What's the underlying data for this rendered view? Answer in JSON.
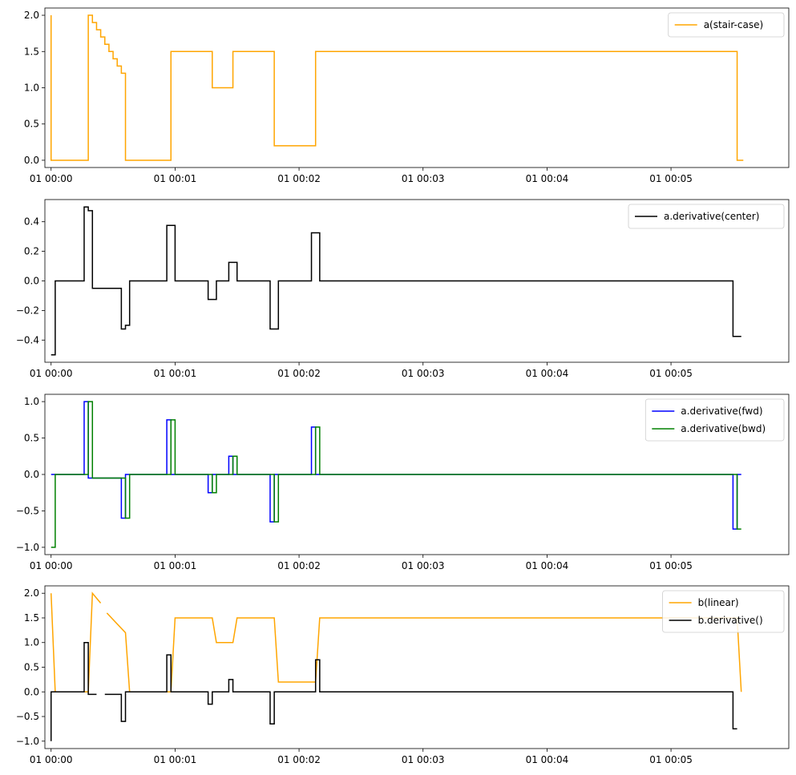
{
  "chart_data": [
    {
      "type": "line",
      "step": true,
      "x_unit": "seconds",
      "xlim": [
        -3,
        357
      ],
      "ylim": [
        -0.1,
        2.1
      ],
      "x_ticks": [
        {
          "label": "01 00:00",
          "value": 0
        },
        {
          "label": "01 00:01",
          "value": 60
        },
        {
          "label": "01 00:02",
          "value": 120
        },
        {
          "label": "01 00:03",
          "value": 180
        },
        {
          "label": "01 00:04",
          "value": 240
        },
        {
          "label": "01 00:05",
          "value": 300
        }
      ],
      "y_ticks": [
        {
          "label": "0.0",
          "value": 0
        },
        {
          "label": "0.5",
          "value": 0.5
        },
        {
          "label": "1.0",
          "value": 1.0
        },
        {
          "label": "1.5",
          "value": 1.5
        },
        {
          "label": "2.0",
          "value": 2.0
        }
      ],
      "legend_position": "top-right",
      "series": [
        {
          "name": "a(stair-case)",
          "color": "#ffa500",
          "segments": [
            [
              [
                0,
                2
              ],
              [
                0,
                0
              ],
              [
                18,
                0
              ],
              [
                18,
                2
              ],
              [
                20,
                2
              ],
              [
                20,
                1.9
              ],
              [
                22,
                1.9
              ],
              [
                22,
                1.8
              ],
              [
                24,
                1.8
              ],
              [
                24,
                1.7
              ],
              [
                26,
                1.7
              ],
              [
                26,
                1.6
              ],
              [
                28,
                1.6
              ],
              [
                28,
                1.5
              ],
              [
                30,
                1.5
              ],
              [
                30,
                1.4
              ],
              [
                32,
                1.4
              ],
              [
                32,
                1.3
              ],
              [
                34,
                1.3
              ],
              [
                34,
                1.2
              ],
              [
                36,
                1.2
              ],
              [
                36,
                0
              ],
              [
                58,
                0
              ],
              [
                58,
                1.5
              ],
              [
                78,
                1.5
              ],
              [
                78,
                1
              ],
              [
                88,
                1
              ],
              [
                88,
                1.5
              ],
              [
                108,
                1.5
              ],
              [
                108,
                0.2
              ],
              [
                128,
                0.2
              ],
              [
                128,
                1.5
              ],
              [
                332,
                1.5
              ],
              [
                332,
                0
              ],
              [
                335,
                0
              ]
            ]
          ]
        }
      ]
    },
    {
      "type": "line",
      "step": true,
      "x_unit": "seconds",
      "xlim": [
        -3,
        357
      ],
      "ylim": [
        -0.55,
        0.55
      ],
      "x_ticks": [
        {
          "label": "01 00:00",
          "value": 0
        },
        {
          "label": "01 00:01",
          "value": 60
        },
        {
          "label": "01 00:02",
          "value": 120
        },
        {
          "label": "01 00:03",
          "value": 180
        },
        {
          "label": "01 00:04",
          "value": 240
        },
        {
          "label": "01 00:05",
          "value": 300
        }
      ],
      "y_ticks": [
        {
          "label": "−0.4",
          "value": -0.4
        },
        {
          "label": "−0.2",
          "value": -0.2
        },
        {
          "label": "0.0",
          "value": 0
        },
        {
          "label": "0.2",
          "value": 0.2
        },
        {
          "label": "0.4",
          "value": 0.4
        }
      ],
      "legend_position": "top-right",
      "series": [
        {
          "name": "a.derivative(center)",
          "color": "#000000",
          "segments": [
            [
              [
                0,
                -0.5
              ],
              [
                2,
                -0.5
              ],
              [
                2,
                0
              ],
              [
                16,
                0
              ],
              [
                16,
                0.5
              ],
              [
                18,
                0.5
              ],
              [
                18,
                0.475
              ],
              [
                20,
                0.475
              ],
              [
                20,
                -0.05
              ],
              [
                34,
                -0.05
              ],
              [
                34,
                -0.325
              ],
              [
                36,
                -0.325
              ],
              [
                36,
                -0.3
              ],
              [
                38,
                -0.3
              ],
              [
                38,
                0
              ],
              [
                56,
                0
              ],
              [
                56,
                0.375
              ],
              [
                60,
                0.375
              ],
              [
                60,
                0
              ],
              [
                76,
                0
              ],
              [
                76,
                -0.125
              ],
              [
                80,
                -0.125
              ],
              [
                80,
                0
              ],
              [
                86,
                0
              ],
              [
                86,
                0.125
              ],
              [
                90,
                0.125
              ],
              [
                90,
                0
              ],
              [
                106,
                0
              ],
              [
                106,
                -0.325
              ],
              [
                110,
                -0.325
              ],
              [
                110,
                0
              ],
              [
                126,
                0
              ],
              [
                126,
                0.325
              ],
              [
                130,
                0.325
              ],
              [
                130,
                0
              ],
              [
                330,
                0
              ],
              [
                330,
                -0.375
              ],
              [
                334,
                -0.375
              ]
            ]
          ]
        }
      ]
    },
    {
      "type": "line",
      "step": true,
      "x_unit": "seconds",
      "xlim": [
        -3,
        357
      ],
      "ylim": [
        -1.1,
        1.1
      ],
      "x_ticks": [
        {
          "label": "01 00:00",
          "value": 0
        },
        {
          "label": "01 00:01",
          "value": 60
        },
        {
          "label": "01 00:02",
          "value": 120
        },
        {
          "label": "01 00:03",
          "value": 180
        },
        {
          "label": "01 00:04",
          "value": 240
        },
        {
          "label": "01 00:05",
          "value": 300
        }
      ],
      "y_ticks": [
        {
          "label": "−1.0",
          "value": -1.0
        },
        {
          "label": "−0.5",
          "value": -0.5
        },
        {
          "label": "0.0",
          "value": 0
        },
        {
          "label": "0.5",
          "value": 0.5
        },
        {
          "label": "1.0",
          "value": 1.0
        }
      ],
      "legend_position": "top-right",
      "series": [
        {
          "name": "a.derivative(fwd)",
          "color": "#0000ff",
          "segments": [
            [
              [
                0,
                0
              ],
              [
                16,
                0
              ],
              [
                16,
                1
              ],
              [
                18,
                1
              ],
              [
                18,
                -0.05
              ],
              [
                34,
                -0.05
              ],
              [
                34,
                -0.6
              ],
              [
                36,
                -0.6
              ],
              [
                36,
                0
              ],
              [
                56,
                0
              ],
              [
                56,
                0.75
              ],
              [
                58,
                0.75
              ],
              [
                58,
                0
              ],
              [
                76,
                0
              ],
              [
                76,
                -0.25
              ],
              [
                78,
                -0.25
              ],
              [
                78,
                0
              ],
              [
                86,
                0
              ],
              [
                86,
                0.25
              ],
              [
                88,
                0.25
              ],
              [
                88,
                0
              ],
              [
                106,
                0
              ],
              [
                106,
                -0.65
              ],
              [
                108,
                -0.65
              ],
              [
                108,
                0
              ],
              [
                126,
                0
              ],
              [
                126,
                0.65
              ],
              [
                128,
                0.65
              ],
              [
                128,
                0
              ],
              [
                330,
                0
              ],
              [
                330,
                -0.75
              ],
              [
                332,
                -0.75
              ],
              [
                332,
                0
              ],
              [
                334,
                0
              ]
            ]
          ]
        },
        {
          "name": "a.derivative(bwd)",
          "color": "#008000",
          "segments": [
            [
              [
                0,
                -1
              ],
              [
                2,
                -1
              ],
              [
                2,
                0
              ],
              [
                18,
                0
              ],
              [
                18,
                1
              ],
              [
                20,
                1
              ],
              [
                20,
                -0.05
              ],
              [
                34,
                -0.05
              ],
              [
                34,
                -0.05
              ],
              [
                36,
                -0.05
              ],
              [
                36,
                -0.6
              ],
              [
                38,
                -0.6
              ],
              [
                38,
                0
              ],
              [
                58,
                0
              ],
              [
                58,
                0.75
              ],
              [
                60,
                0.75
              ],
              [
                60,
                0
              ],
              [
                78,
                0
              ],
              [
                78,
                -0.25
              ],
              [
                80,
                -0.25
              ],
              [
                80,
                0
              ],
              [
                88,
                0
              ],
              [
                88,
                0.25
              ],
              [
                90,
                0.25
              ],
              [
                90,
                0
              ],
              [
                108,
                0
              ],
              [
                108,
                -0.65
              ],
              [
                110,
                -0.65
              ],
              [
                110,
                0
              ],
              [
                128,
                0
              ],
              [
                128,
                0.65
              ],
              [
                130,
                0.65
              ],
              [
                130,
                0
              ],
              [
                332,
                0
              ],
              [
                332,
                -0.75
              ],
              [
                334,
                -0.75
              ]
            ]
          ]
        }
      ]
    },
    {
      "type": "line",
      "step": false,
      "x_unit": "seconds",
      "xlim": [
        -3,
        357
      ],
      "ylim": [
        -1.15,
        2.15
      ],
      "x_ticks": [
        {
          "label": "01 00:00",
          "value": 0
        },
        {
          "label": "01 00:01",
          "value": 60
        },
        {
          "label": "01 00:02",
          "value": 120
        },
        {
          "label": "01 00:03",
          "value": 180
        },
        {
          "label": "01 00:04",
          "value": 240
        },
        {
          "label": "01 00:05",
          "value": 300
        }
      ],
      "y_ticks": [
        {
          "label": "−1.0",
          "value": -1.0
        },
        {
          "label": "−0.5",
          "value": -0.5
        },
        {
          "label": "0.0",
          "value": 0
        },
        {
          "label": "0.5",
          "value": 0.5
        },
        {
          "label": "1.0",
          "value": 1.0
        },
        {
          "label": "1.5",
          "value": 1.5
        },
        {
          "label": "2.0",
          "value": 2.0
        }
      ],
      "legend_position": "top-right",
      "series": [
        {
          "name": "b(linear)",
          "color": "#ffa500",
          "segments": [
            [
              [
                0,
                2
              ],
              [
                2,
                0
              ],
              [
                18,
                0
              ],
              [
                20,
                2
              ],
              [
                24,
                1.8
              ]
            ],
            [
              [
                27,
                1.6
              ],
              [
                36,
                1.2
              ],
              [
                38,
                0
              ],
              [
                58,
                0
              ],
              [
                60,
                1.5
              ],
              [
                78,
                1.5
              ],
              [
                80,
                1
              ],
              [
                88,
                1
              ],
              [
                90,
                1.5
              ],
              [
                108,
                1.5
              ],
              [
                110,
                0.2
              ],
              [
                128,
                0.2
              ],
              [
                130,
                1.5
              ],
              [
                332,
                1.5
              ],
              [
                334,
                0
              ]
            ]
          ]
        },
        {
          "name": "b.derivative()",
          "color": "#000000",
          "segments": [
            [
              [
                0,
                -1
              ],
              [
                0,
                0
              ],
              [
                16,
                0
              ],
              [
                16,
                1
              ],
              [
                18,
                1
              ],
              [
                18,
                -0.05
              ],
              [
                22,
                -0.05
              ]
            ],
            [
              [
                26,
                -0.05
              ],
              [
                34,
                -0.05
              ],
              [
                34,
                -0.6
              ],
              [
                36,
                -0.6
              ],
              [
                36,
                0
              ],
              [
                56,
                0
              ],
              [
                56,
                0.75
              ],
              [
                58,
                0.75
              ],
              [
                58,
                0
              ],
              [
                76,
                0
              ],
              [
                76,
                -0.25
              ],
              [
                78,
                -0.25
              ],
              [
                78,
                0
              ],
              [
                86,
                0
              ],
              [
                86,
                0.25
              ],
              [
                88,
                0.25
              ],
              [
                88,
                0
              ],
              [
                106,
                0
              ],
              [
                106,
                -0.65
              ],
              [
                108,
                -0.65
              ],
              [
                108,
                0
              ],
              [
                128,
                0
              ],
              [
                128,
                0.65
              ],
              [
                130,
                0.65
              ],
              [
                130,
                0
              ],
              [
                330,
                0
              ],
              [
                330,
                -0.75
              ],
              [
                332,
                -0.75
              ]
            ]
          ]
        }
      ]
    }
  ]
}
